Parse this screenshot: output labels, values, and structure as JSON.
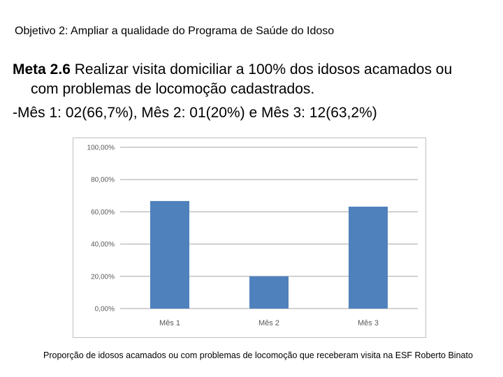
{
  "objective": "Objetivo 2: Ampliar a qualidade do Programa de Saúde do Idoso",
  "meta": {
    "label": "Meta 2.6",
    "text_line1": " Realizar visita domiciliar a 100% dos idosos acamados ou",
    "text_line2": "com problemas de locomoção cadastrados."
  },
  "months_line": "-Mês 1: 02(66,7%), Mês 2: 01(20%) e Mês 3: 12(63,2%)",
  "caption": "Proporção de idosos acamados ou com problemas de locomoção que receberam visita na ESF Roberto Binato",
  "colors": {
    "bar": "#4f81bd",
    "grid": "#a6a6a6",
    "axis_text": "#595959"
  },
  "chart_data": {
    "type": "bar",
    "categories": [
      "Mês 1",
      "Mês 2",
      "Mês 3"
    ],
    "values": [
      66.7,
      20,
      63.2
    ],
    "ylim": [
      0,
      100
    ],
    "yticks": [
      0,
      20,
      40,
      60,
      80,
      100
    ],
    "ytick_labels": [
      "0,00%",
      "20,00%",
      "40,00%",
      "60,00%",
      "80,00%",
      "100,00%"
    ],
    "title": "",
    "xlabel": "",
    "ylabel": "",
    "grid": true,
    "legend": "none"
  }
}
